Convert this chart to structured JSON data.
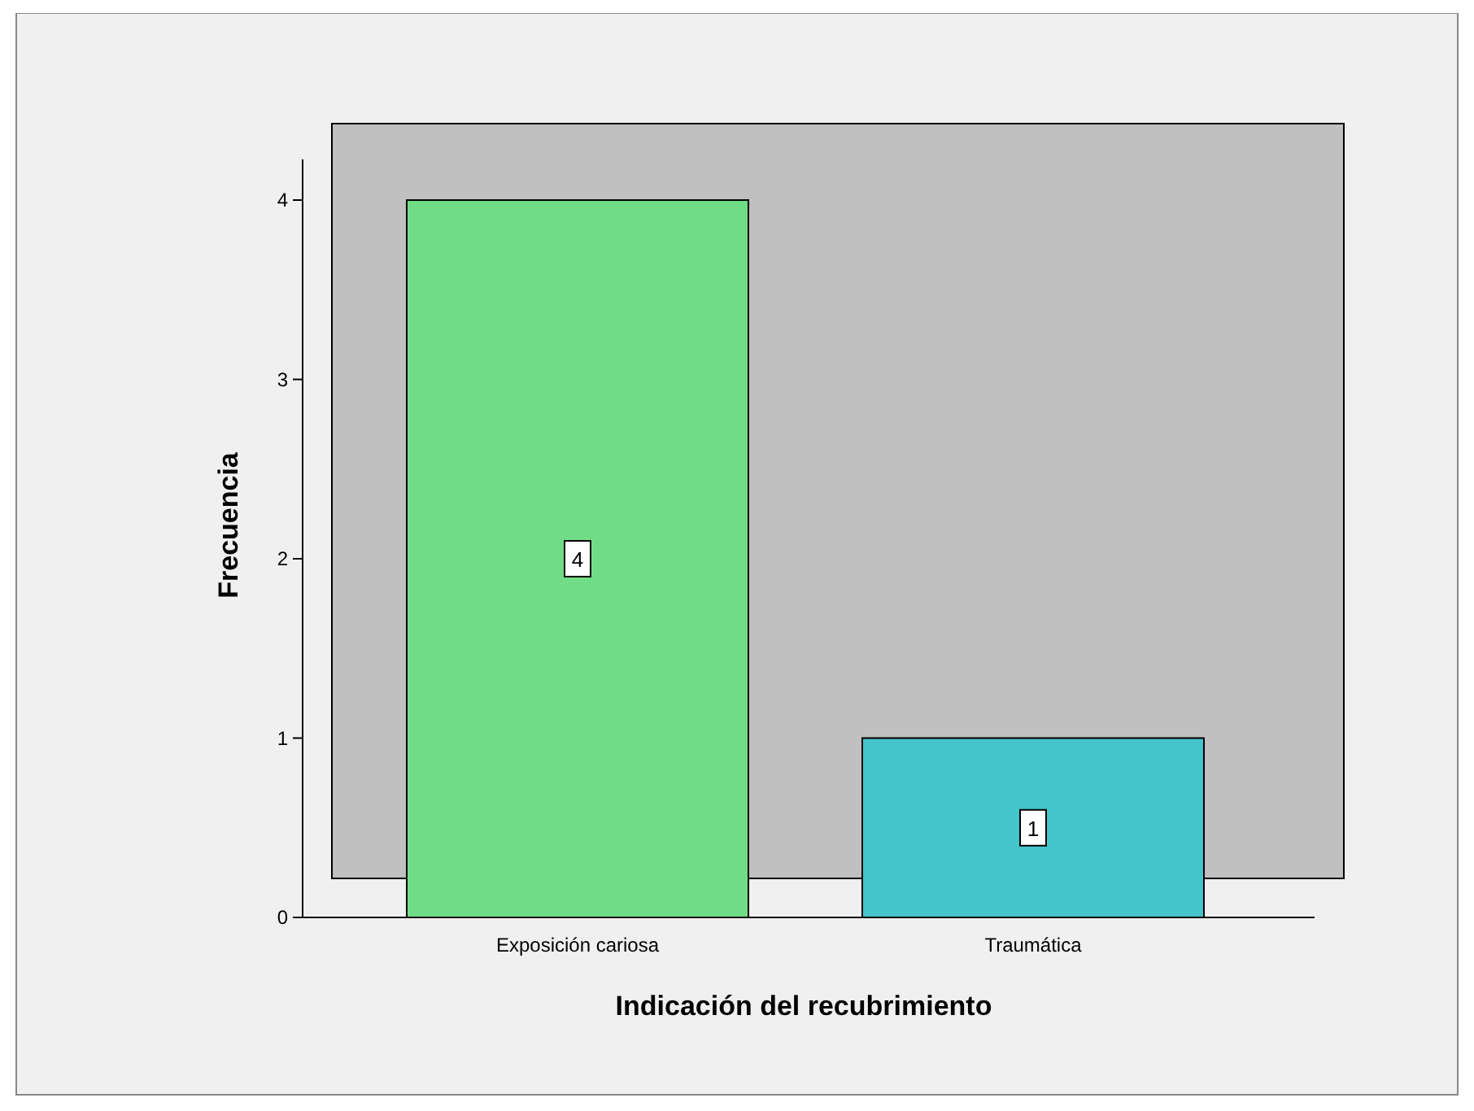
{
  "chart_data": {
    "type": "bar",
    "xlabel": "Indicación del recubrimiento",
    "ylabel": "Frecuencia",
    "categories": [
      "Exposición cariosa",
      "Traumática"
    ],
    "values": [
      4,
      1
    ],
    "colors": [
      "#70dd86",
      "#46c4cb"
    ],
    "ylim": [
      0,
      4
    ],
    "yticks": [
      0,
      1,
      2,
      3,
      4
    ],
    "grid": false,
    "data_labels": true
  }
}
